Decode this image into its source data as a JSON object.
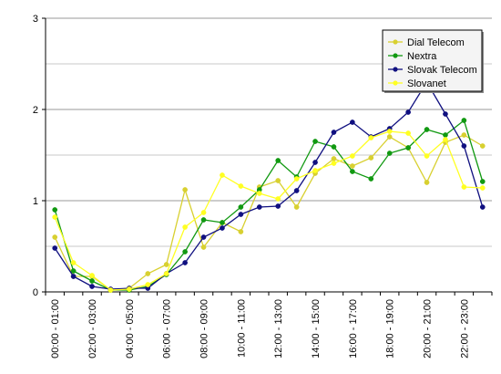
{
  "chart_data": {
    "type": "line",
    "title": "",
    "xlabel": "",
    "ylabel": "",
    "ylim": [
      0,
      3
    ],
    "y_ticks": [
      "0",
      "1",
      "2",
      "3"
    ],
    "x_tick_labels": [
      "00:00 - 01:00",
      "02:00 - 03:00",
      "04:00 - 05:00",
      "06:00 - 07:00",
      "08:00 - 09:00",
      "10:00 - 11:00",
      "12:00 - 13:00",
      "14:00 - 15:00",
      "16:00 - 17:00",
      "18:00 - 19:00",
      "20:00 - 21:00",
      "22:00 - 23:00"
    ],
    "grid": "horizontal",
    "legend_position": "top-right",
    "series": [
      {
        "name": "Dial Telecom",
        "color": "#d8d030",
        "values": [
          0.6,
          0.17,
          0.17,
          0.02,
          0.04,
          0.2,
          0.3,
          1.12,
          0.49,
          0.76,
          0.66,
          1.15,
          1.22,
          0.93,
          1.3,
          1.46,
          1.38,
          1.47,
          1.7,
          1.58,
          1.2,
          1.64,
          1.72,
          1.6
        ]
      },
      {
        "name": "Nextra",
        "color": "#119911",
        "values": [
          0.9,
          0.23,
          0.12,
          0.02,
          0.02,
          0.06,
          0.19,
          0.44,
          0.79,
          0.76,
          0.93,
          1.12,
          1.44,
          1.26,
          1.65,
          1.59,
          1.32,
          1.24,
          1.52,
          1.58,
          1.78,
          1.72,
          1.88,
          1.21
        ]
      },
      {
        "name": "Slovak Telecom",
        "color": "#101080",
        "values": [
          0.48,
          0.17,
          0.06,
          0.03,
          0.04,
          0.04,
          0.2,
          0.32,
          0.6,
          0.7,
          0.85,
          0.93,
          0.94,
          1.11,
          1.42,
          1.75,
          1.86,
          1.7,
          1.79,
          1.97,
          2.3,
          1.95,
          1.6,
          0.93
        ]
      },
      {
        "name": "Slovanet",
        "color": "#ffff22",
        "values": [
          0.82,
          0.32,
          0.18,
          0.02,
          0.03,
          0.08,
          0.2,
          0.71,
          0.87,
          1.28,
          1.16,
          1.08,
          1.02,
          1.24,
          1.33,
          1.41,
          1.49,
          1.69,
          1.76,
          1.74,
          1.49,
          1.67,
          1.15,
          1.14
        ]
      }
    ]
  }
}
